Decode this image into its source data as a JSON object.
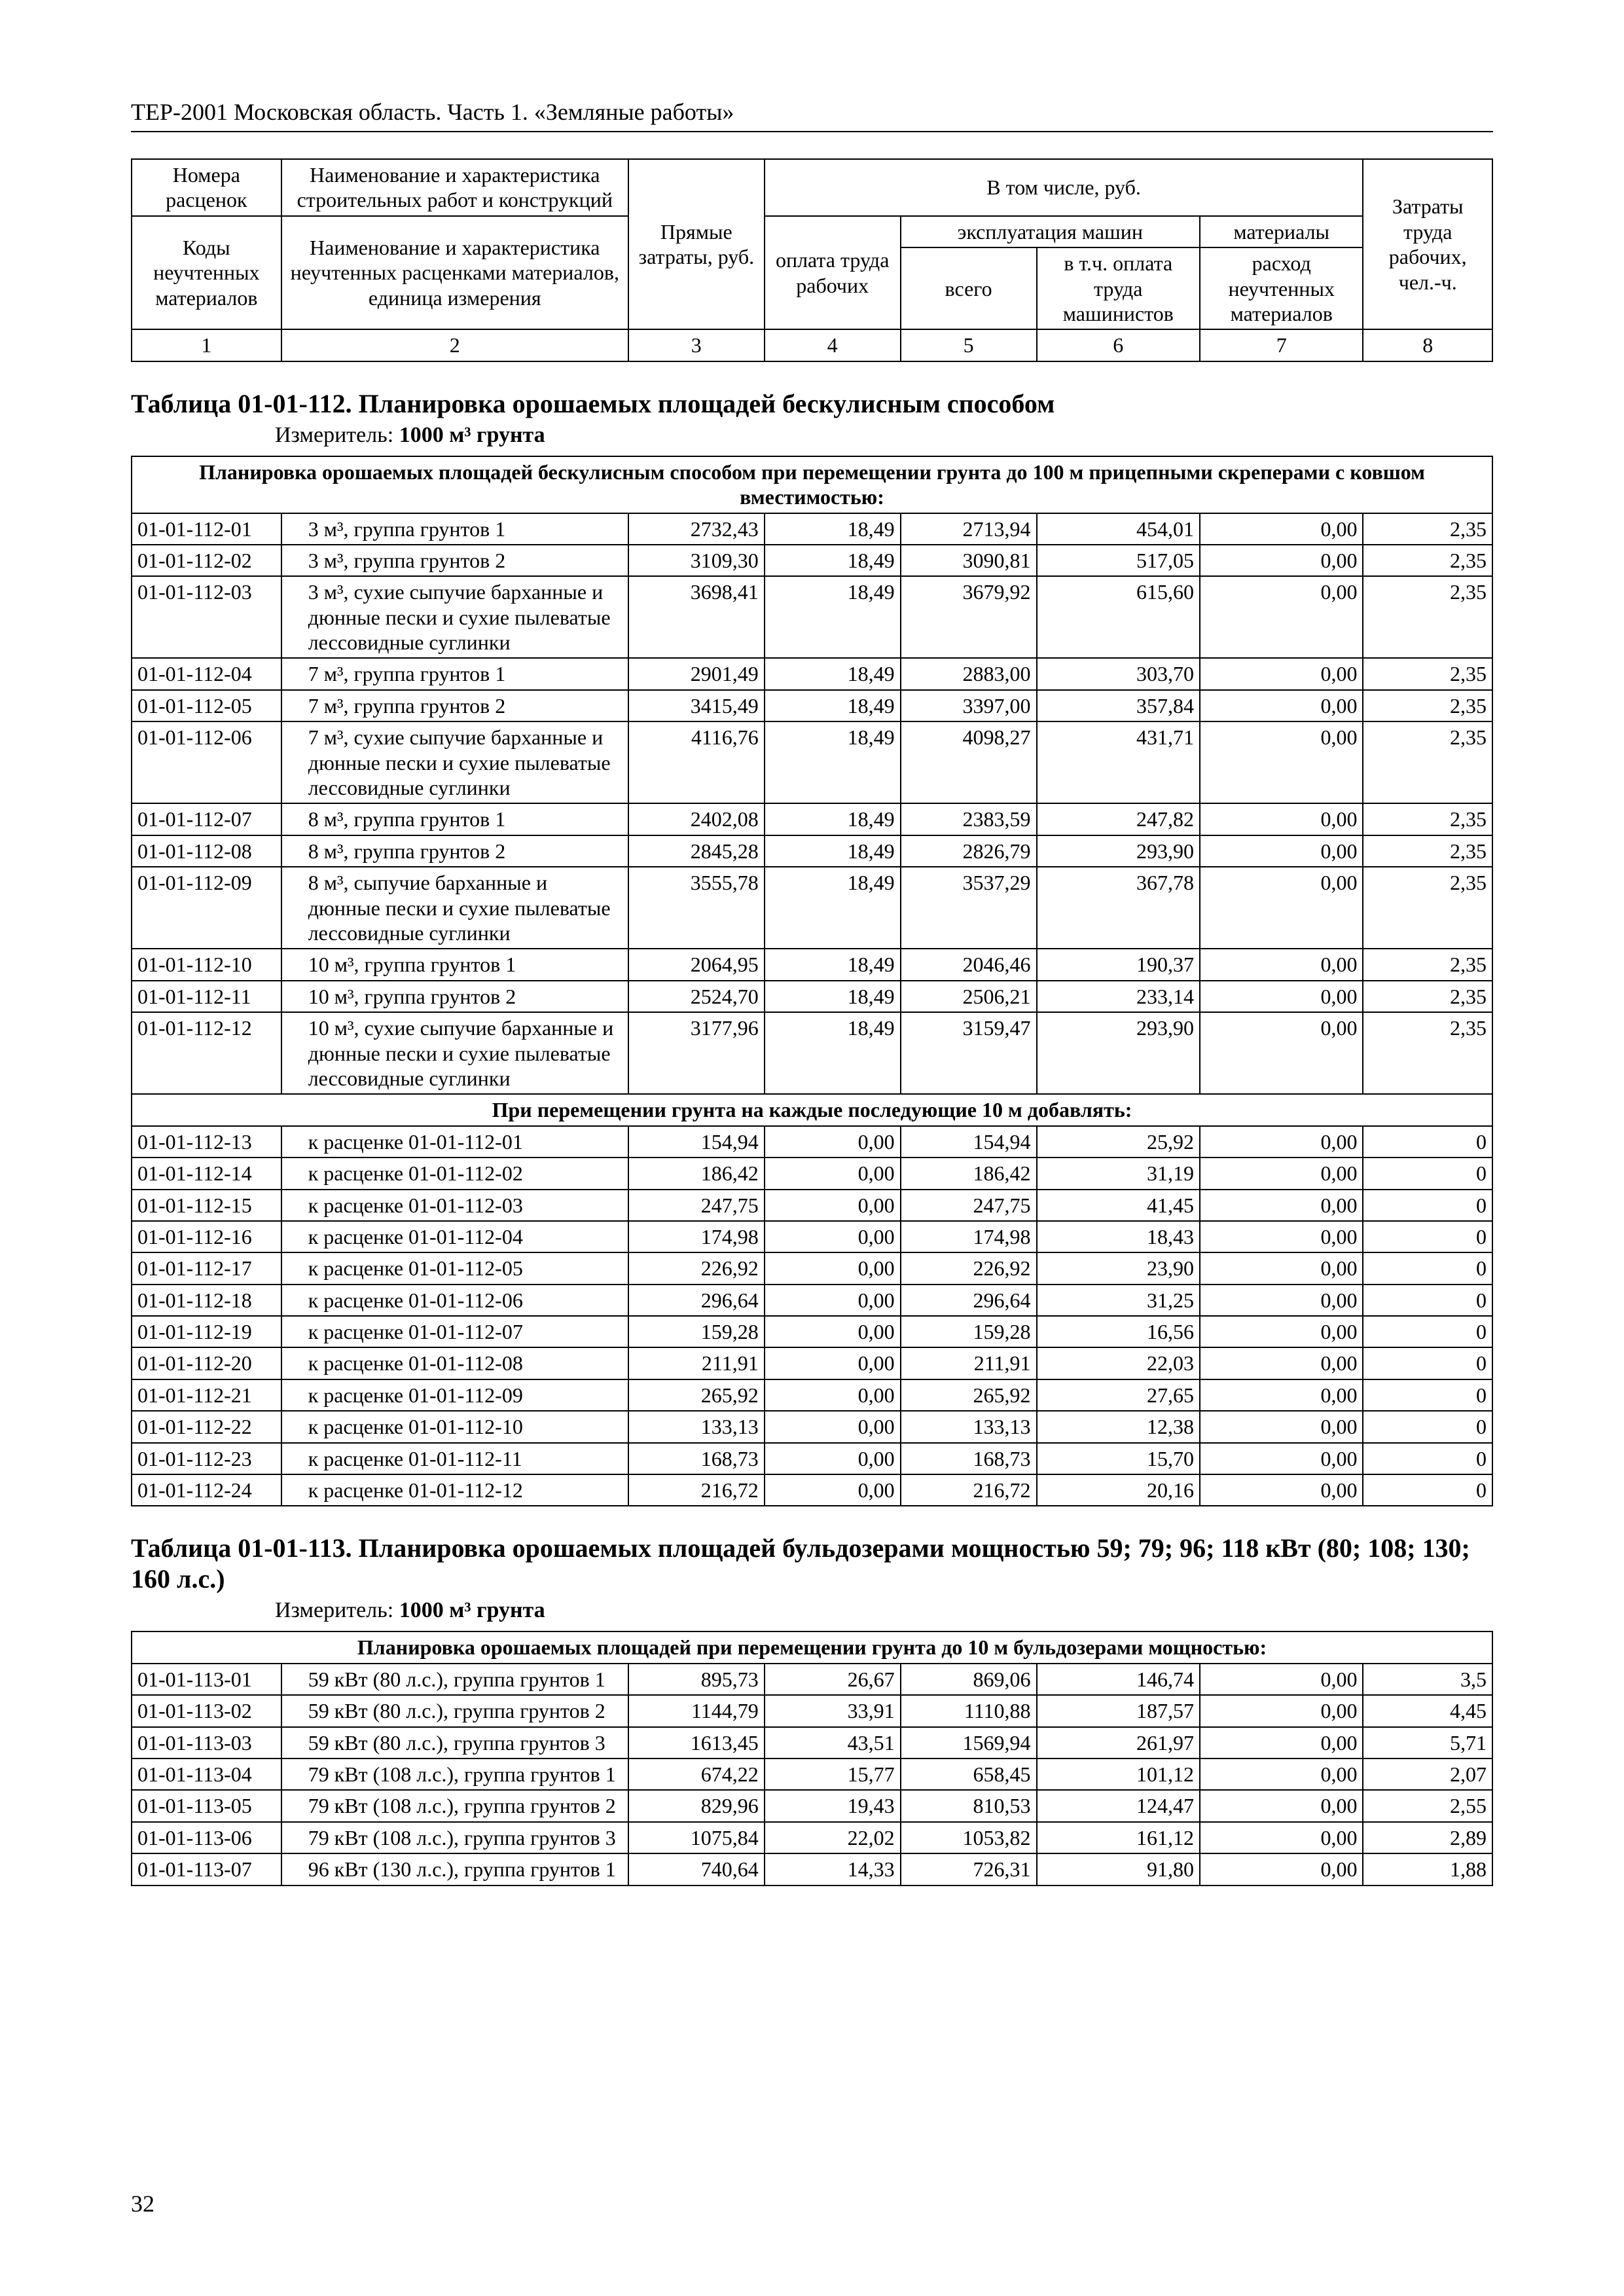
{
  "runningHead": "ТЕР-2001 Московская область. Часть 1. «Земляные работы»",
  "pageNumber": "32",
  "header": {
    "h1a": "Номера расценок",
    "h1b": "Наименование и характеристика строительных работ и конструкций",
    "h1c": "Коды неучтенных материалов",
    "h1d": "Наименование и характеристика неучтенных расценками материалов, единица измерения",
    "h2": "Прямые затраты, руб.",
    "h3": "В том числе, руб.",
    "h4": "оплата труда рабочих",
    "h5a": "эксплуатация машин",
    "h5b": "всего",
    "h5c": "в т.ч. оплата труда машинистов",
    "h6a": "материалы",
    "h6b": "расход неучтенных материалов",
    "h7": "Затраты труда рабочих, чел.-ч.",
    "colNums": [
      "1",
      "2",
      "3",
      "4",
      "5",
      "6",
      "7",
      "8"
    ]
  },
  "sections": [
    {
      "title": "Таблица 01-01-112. Планировка орошаемых площадей бескулисным способом",
      "measure_label": "Измеритель: ",
      "measure": "1000 м³ грунта",
      "groups": [
        {
          "caption": "Планировка орошаемых площадей бескулисным способом при перемещении грунта до 100 м прицепными скреперами с ковшом вместимостью:",
          "rows": [
            {
              "code": "01-01-112-01",
              "name": "3 м³, группа грунтов 1",
              "c3": "2732,43",
              "c4": "18,49",
              "c5": "2713,94",
              "c6": "454,01",
              "c7": "0,00",
              "c8": "2,35"
            },
            {
              "code": "01-01-112-02",
              "name": "3 м³, группа грунтов 2",
              "c3": "3109,30",
              "c4": "18,49",
              "c5": "3090,81",
              "c6": "517,05",
              "c7": "0,00",
              "c8": "2,35"
            },
            {
              "code": "01-01-112-03",
              "name": "3 м³, сухие сыпучие барханные и дюнные пески и сухие пылеватые лессовидные суглинки",
              "c3": "3698,41",
              "c4": "18,49",
              "c5": "3679,92",
              "c6": "615,60",
              "c7": "0,00",
              "c8": "2,35"
            },
            {
              "code": "01-01-112-04",
              "name": "7 м³, группа грунтов 1",
              "c3": "2901,49",
              "c4": "18,49",
              "c5": "2883,00",
              "c6": "303,70",
              "c7": "0,00",
              "c8": "2,35"
            },
            {
              "code": "01-01-112-05",
              "name": "7 м³, группа грунтов 2",
              "c3": "3415,49",
              "c4": "18,49",
              "c5": "3397,00",
              "c6": "357,84",
              "c7": "0,00",
              "c8": "2,35"
            },
            {
              "code": "01-01-112-06",
              "name": "7 м³, сухие сыпучие барханные и дюнные пески и сухие пылеватые лессовидные суглинки",
              "c3": "4116,76",
              "c4": "18,49",
              "c5": "4098,27",
              "c6": "431,71",
              "c7": "0,00",
              "c8": "2,35"
            },
            {
              "code": "01-01-112-07",
              "name": "8 м³, группа грунтов 1",
              "c3": "2402,08",
              "c4": "18,49",
              "c5": "2383,59",
              "c6": "247,82",
              "c7": "0,00",
              "c8": "2,35"
            },
            {
              "code": "01-01-112-08",
              "name": "8 м³, группа грунтов 2",
              "c3": "2845,28",
              "c4": "18,49",
              "c5": "2826,79",
              "c6": "293,90",
              "c7": "0,00",
              "c8": "2,35"
            },
            {
              "code": "01-01-112-09",
              "name": "8 м³, сыпучие барханные и дюнные пески и сухие пылеватые лессовидные суглинки",
              "c3": "3555,78",
              "c4": "18,49",
              "c5": "3537,29",
              "c6": "367,78",
              "c7": "0,00",
              "c8": "2,35"
            },
            {
              "code": "01-01-112-10",
              "name": "10 м³, группа грунтов 1",
              "c3": "2064,95",
              "c4": "18,49",
              "c5": "2046,46",
              "c6": "190,37",
              "c7": "0,00",
              "c8": "2,35"
            },
            {
              "code": "01-01-112-11",
              "name": "10 м³, группа грунтов 2",
              "c3": "2524,70",
              "c4": "18,49",
              "c5": "2506,21",
              "c6": "233,14",
              "c7": "0,00",
              "c8": "2,35"
            },
            {
              "code": "01-01-112-12",
              "name": "10 м³, сухие сыпучие барханные и дюнные пески и сухие пылеватые лессовидные суглинки",
              "c3": "3177,96",
              "c4": "18,49",
              "c5": "3159,47",
              "c6": "293,90",
              "c7": "0,00",
              "c8": "2,35"
            }
          ]
        },
        {
          "caption": "При перемещении грунта на каждые последующие 10 м добавлять:",
          "rows": [
            {
              "code": "01-01-112-13",
              "name": "к расценке 01-01-112-01",
              "c3": "154,94",
              "c4": "0,00",
              "c5": "154,94",
              "c6": "25,92",
              "c7": "0,00",
              "c8": "0"
            },
            {
              "code": "01-01-112-14",
              "name": "к расценке 01-01-112-02",
              "c3": "186,42",
              "c4": "0,00",
              "c5": "186,42",
              "c6": "31,19",
              "c7": "0,00",
              "c8": "0"
            },
            {
              "code": "01-01-112-15",
              "name": "к расценке 01-01-112-03",
              "c3": "247,75",
              "c4": "0,00",
              "c5": "247,75",
              "c6": "41,45",
              "c7": "0,00",
              "c8": "0"
            },
            {
              "code": "01-01-112-16",
              "name": "к расценке 01-01-112-04",
              "c3": "174,98",
              "c4": "0,00",
              "c5": "174,98",
              "c6": "18,43",
              "c7": "0,00",
              "c8": "0"
            },
            {
              "code": "01-01-112-17",
              "name": "к расценке 01-01-112-05",
              "c3": "226,92",
              "c4": "0,00",
              "c5": "226,92",
              "c6": "23,90",
              "c7": "0,00",
              "c8": "0"
            },
            {
              "code": "01-01-112-18",
              "name": "к расценке 01-01-112-06",
              "c3": "296,64",
              "c4": "0,00",
              "c5": "296,64",
              "c6": "31,25",
              "c7": "0,00",
              "c8": "0"
            },
            {
              "code": "01-01-112-19",
              "name": "к расценке 01-01-112-07",
              "c3": "159,28",
              "c4": "0,00",
              "c5": "159,28",
              "c6": "16,56",
              "c7": "0,00",
              "c8": "0"
            },
            {
              "code": "01-01-112-20",
              "name": "к расценке 01-01-112-08",
              "c3": "211,91",
              "c4": "0,00",
              "c5": "211,91",
              "c6": "22,03",
              "c7": "0,00",
              "c8": "0"
            },
            {
              "code": "01-01-112-21",
              "name": "к расценке 01-01-112-09",
              "c3": "265,92",
              "c4": "0,00",
              "c5": "265,92",
              "c6": "27,65",
              "c7": "0,00",
              "c8": "0"
            },
            {
              "code": "01-01-112-22",
              "name": "к расценке 01-01-112-10",
              "c3": "133,13",
              "c4": "0,00",
              "c5": "133,13",
              "c6": "12,38",
              "c7": "0,00",
              "c8": "0"
            },
            {
              "code": "01-01-112-23",
              "name": "к расценке 01-01-112-11",
              "c3": "168,73",
              "c4": "0,00",
              "c5": "168,73",
              "c6": "15,70",
              "c7": "0,00",
              "c8": "0"
            },
            {
              "code": "01-01-112-24",
              "name": "к расценке 01-01-112-12",
              "c3": "216,72",
              "c4": "0,00",
              "c5": "216,72",
              "c6": "20,16",
              "c7": "0,00",
              "c8": "0"
            }
          ]
        }
      ]
    },
    {
      "title": "Таблица 01-01-113. Планировка орошаемых площадей бульдозерами мощностью 59; 79; 96; 118 кВт (80; 108; 130; 160 л.с.)",
      "measure_label": "Измеритель: ",
      "measure": "1000 м³ грунта",
      "groups": [
        {
          "caption": "Планировка орошаемых площадей при перемещении грунта до 10 м бульдозерами мощностью:",
          "rows": [
            {
              "code": "01-01-113-01",
              "name": "59 кВт (80 л.с.), группа грунтов 1",
              "c3": "895,73",
              "c4": "26,67",
              "c5": "869,06",
              "c6": "146,74",
              "c7": "0,00",
              "c8": "3,5"
            },
            {
              "code": "01-01-113-02",
              "name": "59 кВт (80 л.с.), группа грунтов 2",
              "c3": "1144,79",
              "c4": "33,91",
              "c5": "1110,88",
              "c6": "187,57",
              "c7": "0,00",
              "c8": "4,45"
            },
            {
              "code": "01-01-113-03",
              "name": "59 кВт (80 л.с.), группа грунтов 3",
              "c3": "1613,45",
              "c4": "43,51",
              "c5": "1569,94",
              "c6": "261,97",
              "c7": "0,00",
              "c8": "5,71"
            },
            {
              "code": "01-01-113-04",
              "name": "79 кВт (108 л.с.), группа грунтов 1",
              "c3": "674,22",
              "c4": "15,77",
              "c5": "658,45",
              "c6": "101,12",
              "c7": "0,00",
              "c8": "2,07"
            },
            {
              "code": "01-01-113-05",
              "name": "79 кВт (108 л.с.), группа грунтов 2",
              "c3": "829,96",
              "c4": "19,43",
              "c5": "810,53",
              "c6": "124,47",
              "c7": "0,00",
              "c8": "2,55"
            },
            {
              "code": "01-01-113-06",
              "name": "79 кВт (108 л.с.), группа грунтов 3",
              "c3": "1075,84",
              "c4": "22,02",
              "c5": "1053,82",
              "c6": "161,12",
              "c7": "0,00",
              "c8": "2,89"
            },
            {
              "code": "01-01-113-07",
              "name": "96 кВт (130 л.с.), группа грунтов 1",
              "c3": "740,64",
              "c4": "14,33",
              "c5": "726,31",
              "c6": "91,80",
              "c7": "0,00",
              "c8": "1,88"
            }
          ]
        }
      ]
    }
  ]
}
